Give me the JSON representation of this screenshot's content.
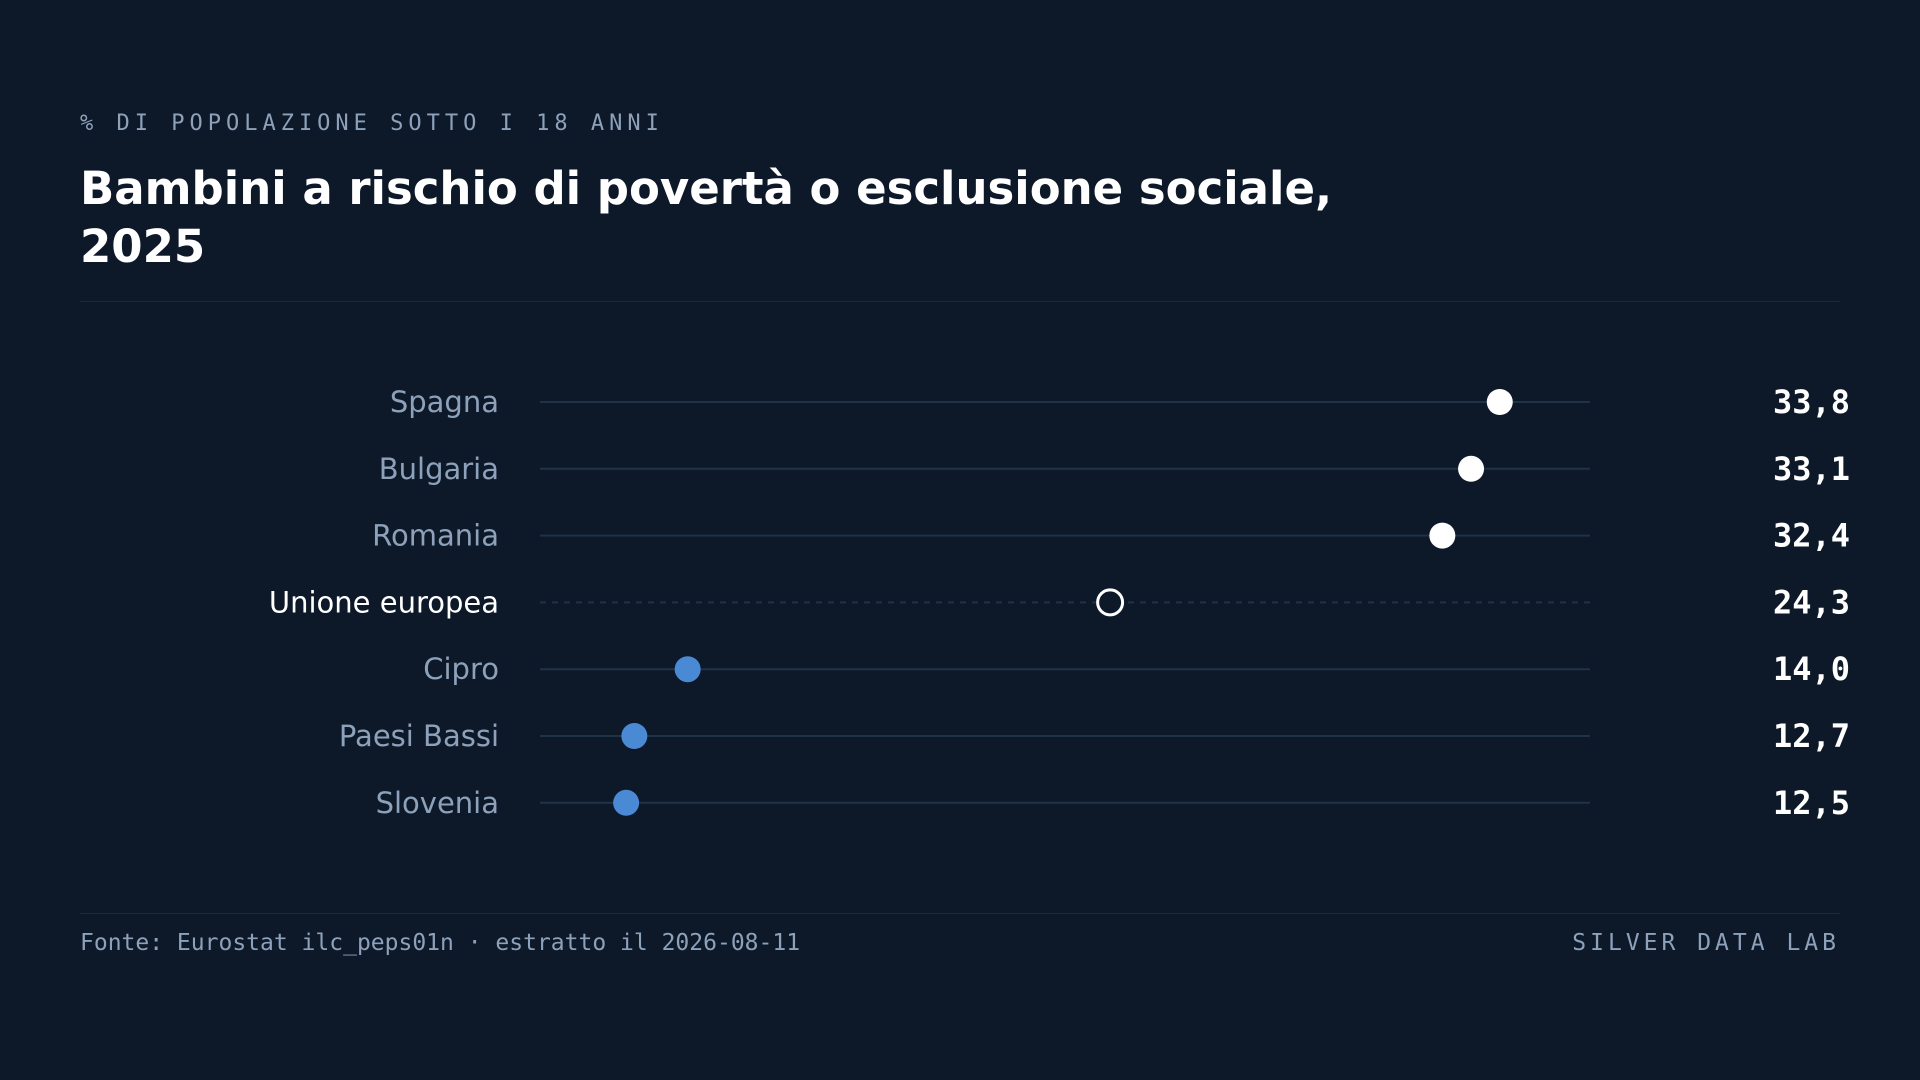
{
  "header": {
    "kicker": "% DI POPOLAZIONE SOTTO I 18 ANNI",
    "title": "Bambini a rischio di povertà o esclusione sociale, 2025"
  },
  "footer": {
    "source": "Fonte: Eurostat ilc_peps01n · estratto il 2026-08-11",
    "brand": "SILVER DATA LAB"
  },
  "colors": {
    "background": "#0d1929",
    "high": "#ffffff",
    "low": "#4a8ad4",
    "reference_ring": "#ffffff",
    "track": "#1f3347",
    "label": "#8da1ba",
    "reference_label": "#ffffff",
    "value": "#ffffff"
  },
  "chart_data": {
    "type": "scatter",
    "subtype": "dot-plot",
    "categories": [
      "Spagna",
      "Bulgaria",
      "Romania",
      "Unione europea",
      "Cipro",
      "Paesi Bassi",
      "Slovenia"
    ],
    "values": [
      33.8,
      33.1,
      32.4,
      24.3,
      14.0,
      12.7,
      12.5
    ],
    "value_labels": [
      "33,8",
      "33,1",
      "32,4",
      "24,3",
      "14,0",
      "12,7",
      "12,5"
    ],
    "reference_category": "Unione europea",
    "xlim": [
      10.4,
      36.0
    ],
    "grid": false,
    "legend": "none"
  }
}
